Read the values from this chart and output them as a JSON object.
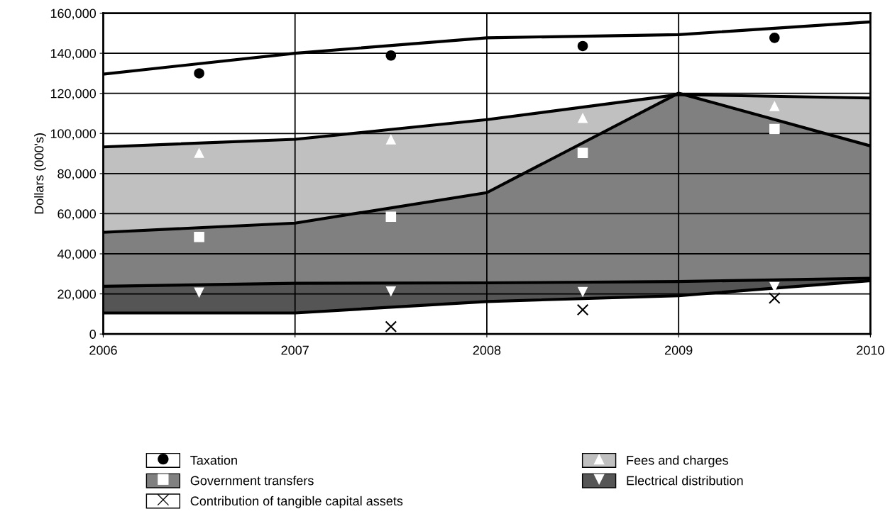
{
  "chart_data": {
    "type": "area",
    "ylabel": "Dollars (000's)",
    "xlim": [
      2006,
      2010
    ],
    "xticks": [
      2006,
      2007,
      2008,
      2009,
      2010
    ],
    "ylim": [
      0,
      160000
    ],
    "yticks": [
      {
        "value": 0,
        "label": "0"
      },
      {
        "value": 20000,
        "label": "20,000"
      },
      {
        "value": 40000,
        "label": "40,000"
      },
      {
        "value": 60000,
        "label": "60,000"
      },
      {
        "value": 80000,
        "label": "80,000"
      },
      {
        "value": 100000,
        "label": "100,000"
      },
      {
        "value": 120000,
        "label": "120,000"
      },
      {
        "value": 140000,
        "label": "140,000"
      },
      {
        "value": 160000,
        "label": "160,000"
      }
    ],
    "grid": true,
    "legend": "bottom",
    "series": [
      {
        "name": "Taxation",
        "type": "line",
        "color": "#000000",
        "x": [
          2006,
          2007,
          2008,
          2009,
          2010
        ],
        "values": [
          129600,
          140000,
          147700,
          149300,
          155600
        ]
      },
      {
        "name": "Fees and charges",
        "color": "#c0c0c0",
        "x": [
          2006,
          2007,
          2008,
          2009,
          2010
        ],
        "values": [
          93300,
          97100,
          106900,
          119400,
          117700
        ]
      },
      {
        "name": "Government transfers",
        "color": "#808080",
        "x": [
          2006,
          2007,
          2008,
          2009,
          2010
        ],
        "values": [
          50700,
          55300,
          70500,
          120100,
          93800
        ]
      },
      {
        "name": "Electrical distribution",
        "color": "#555555",
        "x": [
          2006,
          2007,
          2008,
          2009,
          2010
        ],
        "values": [
          23800,
          25300,
          25500,
          26200,
          27800
        ]
      },
      {
        "name": "Contribution of tangible capital assets",
        "color": "#ffffff",
        "x": [
          2006,
          2007,
          2008,
          2009,
          2010
        ],
        "values": [
          10500,
          10500,
          16200,
          19100,
          26600
        ]
      },
      {
        "type": "scatter",
        "color": "#000000",
        "marker": "circle",
        "x": [
          2006.5,
          2007.5,
          2008.5,
          2009.5
        ],
        "values": [
          130000,
          138900,
          143600,
          147700
        ]
      },
      {
        "type": "scatter",
        "color": "#ffffff",
        "marker": "triangle",
        "x": [
          2006.5,
          2007.5,
          2008.5,
          2009.5
        ],
        "values": [
          90400,
          97100,
          107800,
          113700
        ]
      },
      {
        "type": "scatter",
        "color": "#ffffff",
        "marker": "square",
        "x": [
          2006.5,
          2007.5,
          2008.5,
          2009.5
        ],
        "values": [
          48400,
          58500,
          90300,
          102200
        ]
      },
      {
        "type": "scatter",
        "color": "#ffffff",
        "marker": "triangle_down",
        "x": [
          2006.5,
          2007.5,
          2008.5,
          2009.5
        ],
        "values": [
          20600,
          21200,
          20900,
          23400
        ]
      },
      {
        "type": "scatter",
        "color": "#000000",
        "marker": "cross",
        "x": [
          2007.5,
          2008.5,
          2009.5
        ],
        "values": [
          3700,
          12100,
          17900
        ]
      }
    ]
  }
}
